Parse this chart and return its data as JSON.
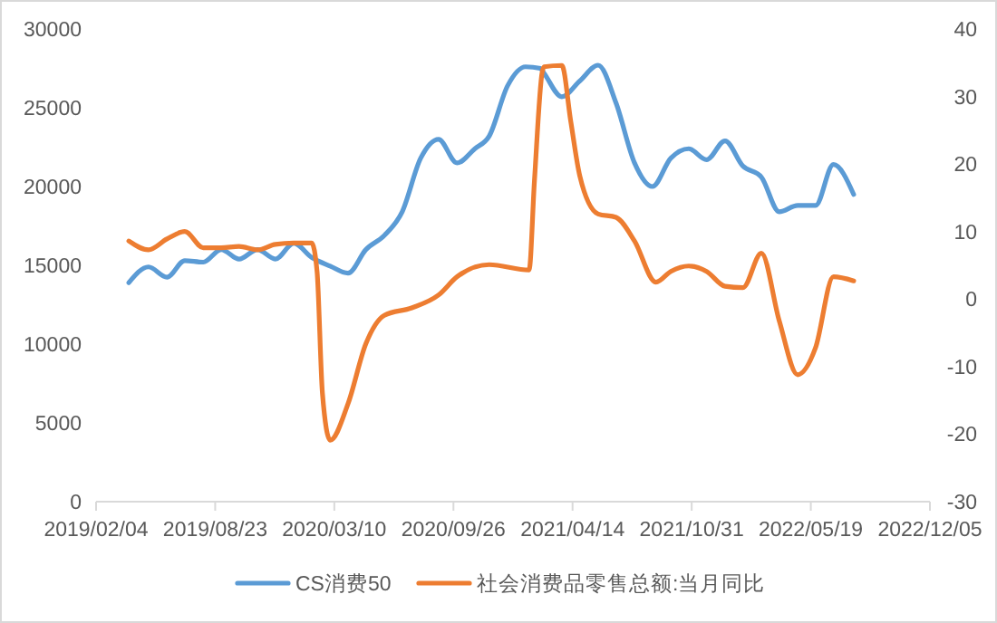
{
  "chart_data": {
    "type": "line",
    "xlim": [
      "2019-02-04",
      "2022-12-05"
    ],
    "xticks": [
      {
        "value": "2019-02-04",
        "label": "2019/02/04"
      },
      {
        "value": "2019-08-23",
        "label": "2019/08/23"
      },
      {
        "value": "2020-03-10",
        "label": "2020/03/10"
      },
      {
        "value": "2020-09-26",
        "label": "2020/09/26"
      },
      {
        "value": "2021-04-14",
        "label": "2021/04/14"
      },
      {
        "value": "2021-10-31",
        "label": "2021/10/31"
      },
      {
        "value": "2022-05-19",
        "label": "2022/05/19"
      },
      {
        "value": "2022-12-05",
        "label": "2022/12/05"
      }
    ],
    "ylim": [
      0,
      30000
    ],
    "yticks": [
      0,
      5000,
      10000,
      15000,
      20000,
      25000,
      30000
    ],
    "y2lim": [
      -30,
      40
    ],
    "y2ticks": [
      -30,
      -20,
      -10,
      0,
      10,
      20,
      30,
      40
    ],
    "legend": "bottom",
    "line_style": "solid",
    "marker": "none",
    "series": [
      {
        "name": "CS消费50",
        "color": "#5b9bd5",
        "x": [
          "2019-03-31",
          "2019-05-03",
          "2019-06-03",
          "2019-07-03",
          "2019-08-03",
          "2019-09-02",
          "2019-10-02",
          "2019-11-02",
          "2019-12-02",
          "2020-01-02",
          "2020-02-01",
          "2020-03-03",
          "2020-04-02",
          "2020-05-02",
          "2020-06-02",
          "2020-07-02",
          "2020-08-02",
          "2020-09-01",
          "2020-10-02",
          "2020-11-01",
          "2020-11-25",
          "2020-12-26",
          "2021-01-25",
          "2021-02-19",
          "2021-02-25",
          "2021-03-27",
          "2021-04-26",
          "2021-05-27",
          "2021-06-26",
          "2021-07-27",
          "2021-08-26",
          "2021-09-26",
          "2021-10-26",
          "2021-11-25",
          "2021-12-26",
          "2022-01-25",
          "2022-02-25",
          "2022-03-27",
          "2022-04-27",
          "2022-05-27",
          "2022-06-26",
          "2022-07-30"
        ],
        "values": [
          13900,
          14900,
          14250,
          15300,
          15200,
          16000,
          15400,
          16000,
          15400,
          16400,
          15500,
          14950,
          14500,
          16000,
          16900,
          18400,
          21800,
          23000,
          21500,
          22400,
          23200,
          26400,
          27600,
          27500,
          27200,
          25700,
          26700,
          27700,
          25300,
          21500,
          20000,
          21800,
          22400,
          21700,
          22900,
          21300,
          20600,
          18400,
          18800,
          18800,
          21400,
          19500
        ]
      },
      {
        "name": "社会消费品零售总额:当月同比",
        "color": "#ed7d31",
        "axis": "y2",
        "x": [
          "2019-03-31",
          "2019-05-03",
          "2019-06-03",
          "2019-07-03",
          "2019-08-03",
          "2019-09-02",
          "2019-10-02",
          "2019-11-02",
          "2019-12-02",
          "2020-01-02",
          "2020-02-01",
          "2020-02-10",
          "2020-02-19",
          "2020-03-03",
          "2020-04-02",
          "2020-05-02",
          "2020-06-02",
          "2020-07-18",
          "2020-09-01",
          "2020-10-02",
          "2020-11-25",
          "2021-01-31",
          "2021-02-09",
          "2021-02-22",
          "2021-02-25",
          "2021-03-27",
          "2021-04-11",
          "2021-04-26",
          "2021-05-27",
          "2021-06-26",
          "2021-07-27",
          "2021-09-01",
          "2021-09-26",
          "2021-10-26",
          "2021-11-25",
          "2021-12-26",
          "2022-01-25",
          "2022-02-25",
          "2022-03-27",
          "2022-04-27",
          "2022-05-27",
          "2022-06-26",
          "2022-07-30"
        ],
        "values": [
          8.6,
          7.3,
          8.9,
          10,
          7.6,
          7.6,
          7.8,
          7.3,
          8.1,
          8.3,
          8.3,
          4.1,
          -13.9,
          -20.9,
          -15.5,
          -6.6,
          -2.4,
          -1.3,
          0.6,
          3.3,
          5.1,
          4.3,
          17.5,
          33.6,
          34.4,
          34.6,
          26.3,
          18.3,
          12.6,
          12.1,
          8.6,
          2.5,
          4.1,
          4.9,
          4.1,
          1.9,
          1.7,
          6.8,
          -3.2,
          -11.2,
          -7.2,
          3.3,
          2.7
        ]
      }
    ]
  }
}
